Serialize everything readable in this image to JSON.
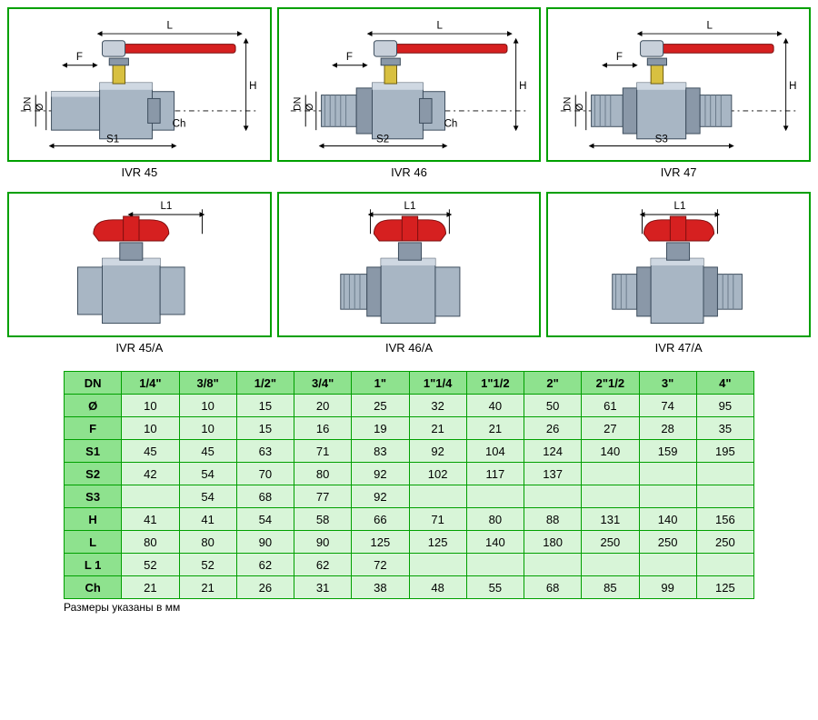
{
  "colors": {
    "panel_border": "#00a000",
    "table_header_bg": "#8ee28e",
    "table_cell_bg": "#d8f5d8",
    "handle_red": "#d62020",
    "valve_body": "#a8b6c4",
    "valve_body_dark": "#6a7a8a",
    "stem_yellow": "#d8c040",
    "dim_line": "#000000"
  },
  "panels_top": [
    {
      "label": "IVR 45",
      "s_label": "S1",
      "show_ch": true
    },
    {
      "label": "IVR 46",
      "s_label": "S2",
      "show_ch": true
    },
    {
      "label": "IVR 47",
      "s_label": "S3",
      "show_ch": false
    }
  ],
  "panels_bot": [
    {
      "label": "IVR 45/A"
    },
    {
      "label": "IVR 46/A"
    },
    {
      "label": "IVR 47/A"
    }
  ],
  "dim_labels": {
    "L": "L",
    "H": "H",
    "F": "F",
    "DN": "DN",
    "diam": "Ø",
    "Ch": "Ch",
    "L1": "L1"
  },
  "table": {
    "columns": [
      "DN",
      "1/4\"",
      "3/8\"",
      "1/2\"",
      "3/4\"",
      "1\"",
      "1\"1/4",
      "1\"1/2",
      "2\"",
      "2\"1/2",
      "3\"",
      "4\""
    ],
    "rows": [
      {
        "head": "Ø",
        "cells": [
          "10",
          "10",
          "15",
          "20",
          "25",
          "32",
          "40",
          "50",
          "61",
          "74",
          "95"
        ]
      },
      {
        "head": "F",
        "cells": [
          "10",
          "10",
          "15",
          "16",
          "19",
          "21",
          "21",
          "26",
          "27",
          "28",
          "35"
        ]
      },
      {
        "head": "S1",
        "cells": [
          "45",
          "45",
          "63",
          "71",
          "83",
          "92",
          "104",
          "124",
          "140",
          "159",
          "195"
        ]
      },
      {
        "head": "S2",
        "cells": [
          "42",
          "54",
          "70",
          "80",
          "92",
          "102",
          "117",
          "137",
          "",
          "",
          ""
        ]
      },
      {
        "head": "S3",
        "cells": [
          "",
          "54",
          "68",
          "77",
          "92",
          "",
          "",
          "",
          "",
          "",
          ""
        ]
      },
      {
        "head": "H",
        "cells": [
          "41",
          "41",
          "54",
          "58",
          "66",
          "71",
          "80",
          "88",
          "131",
          "140",
          "156"
        ]
      },
      {
        "head": "L",
        "cells": [
          "80",
          "80",
          "90",
          "90",
          "125",
          "125",
          "140",
          "180",
          "250",
          "250",
          "250"
        ]
      },
      {
        "head": "L 1",
        "cells": [
          "52",
          "52",
          "62",
          "62",
          "72",
          "",
          "",
          "",
          "",
          "",
          ""
        ]
      },
      {
        "head": "Ch",
        "cells": [
          "21",
          "21",
          "26",
          "31",
          "38",
          "48",
          "55",
          "68",
          "85",
          "99",
          "125"
        ]
      }
    ]
  },
  "caption": "Размеры указаны в мм"
}
